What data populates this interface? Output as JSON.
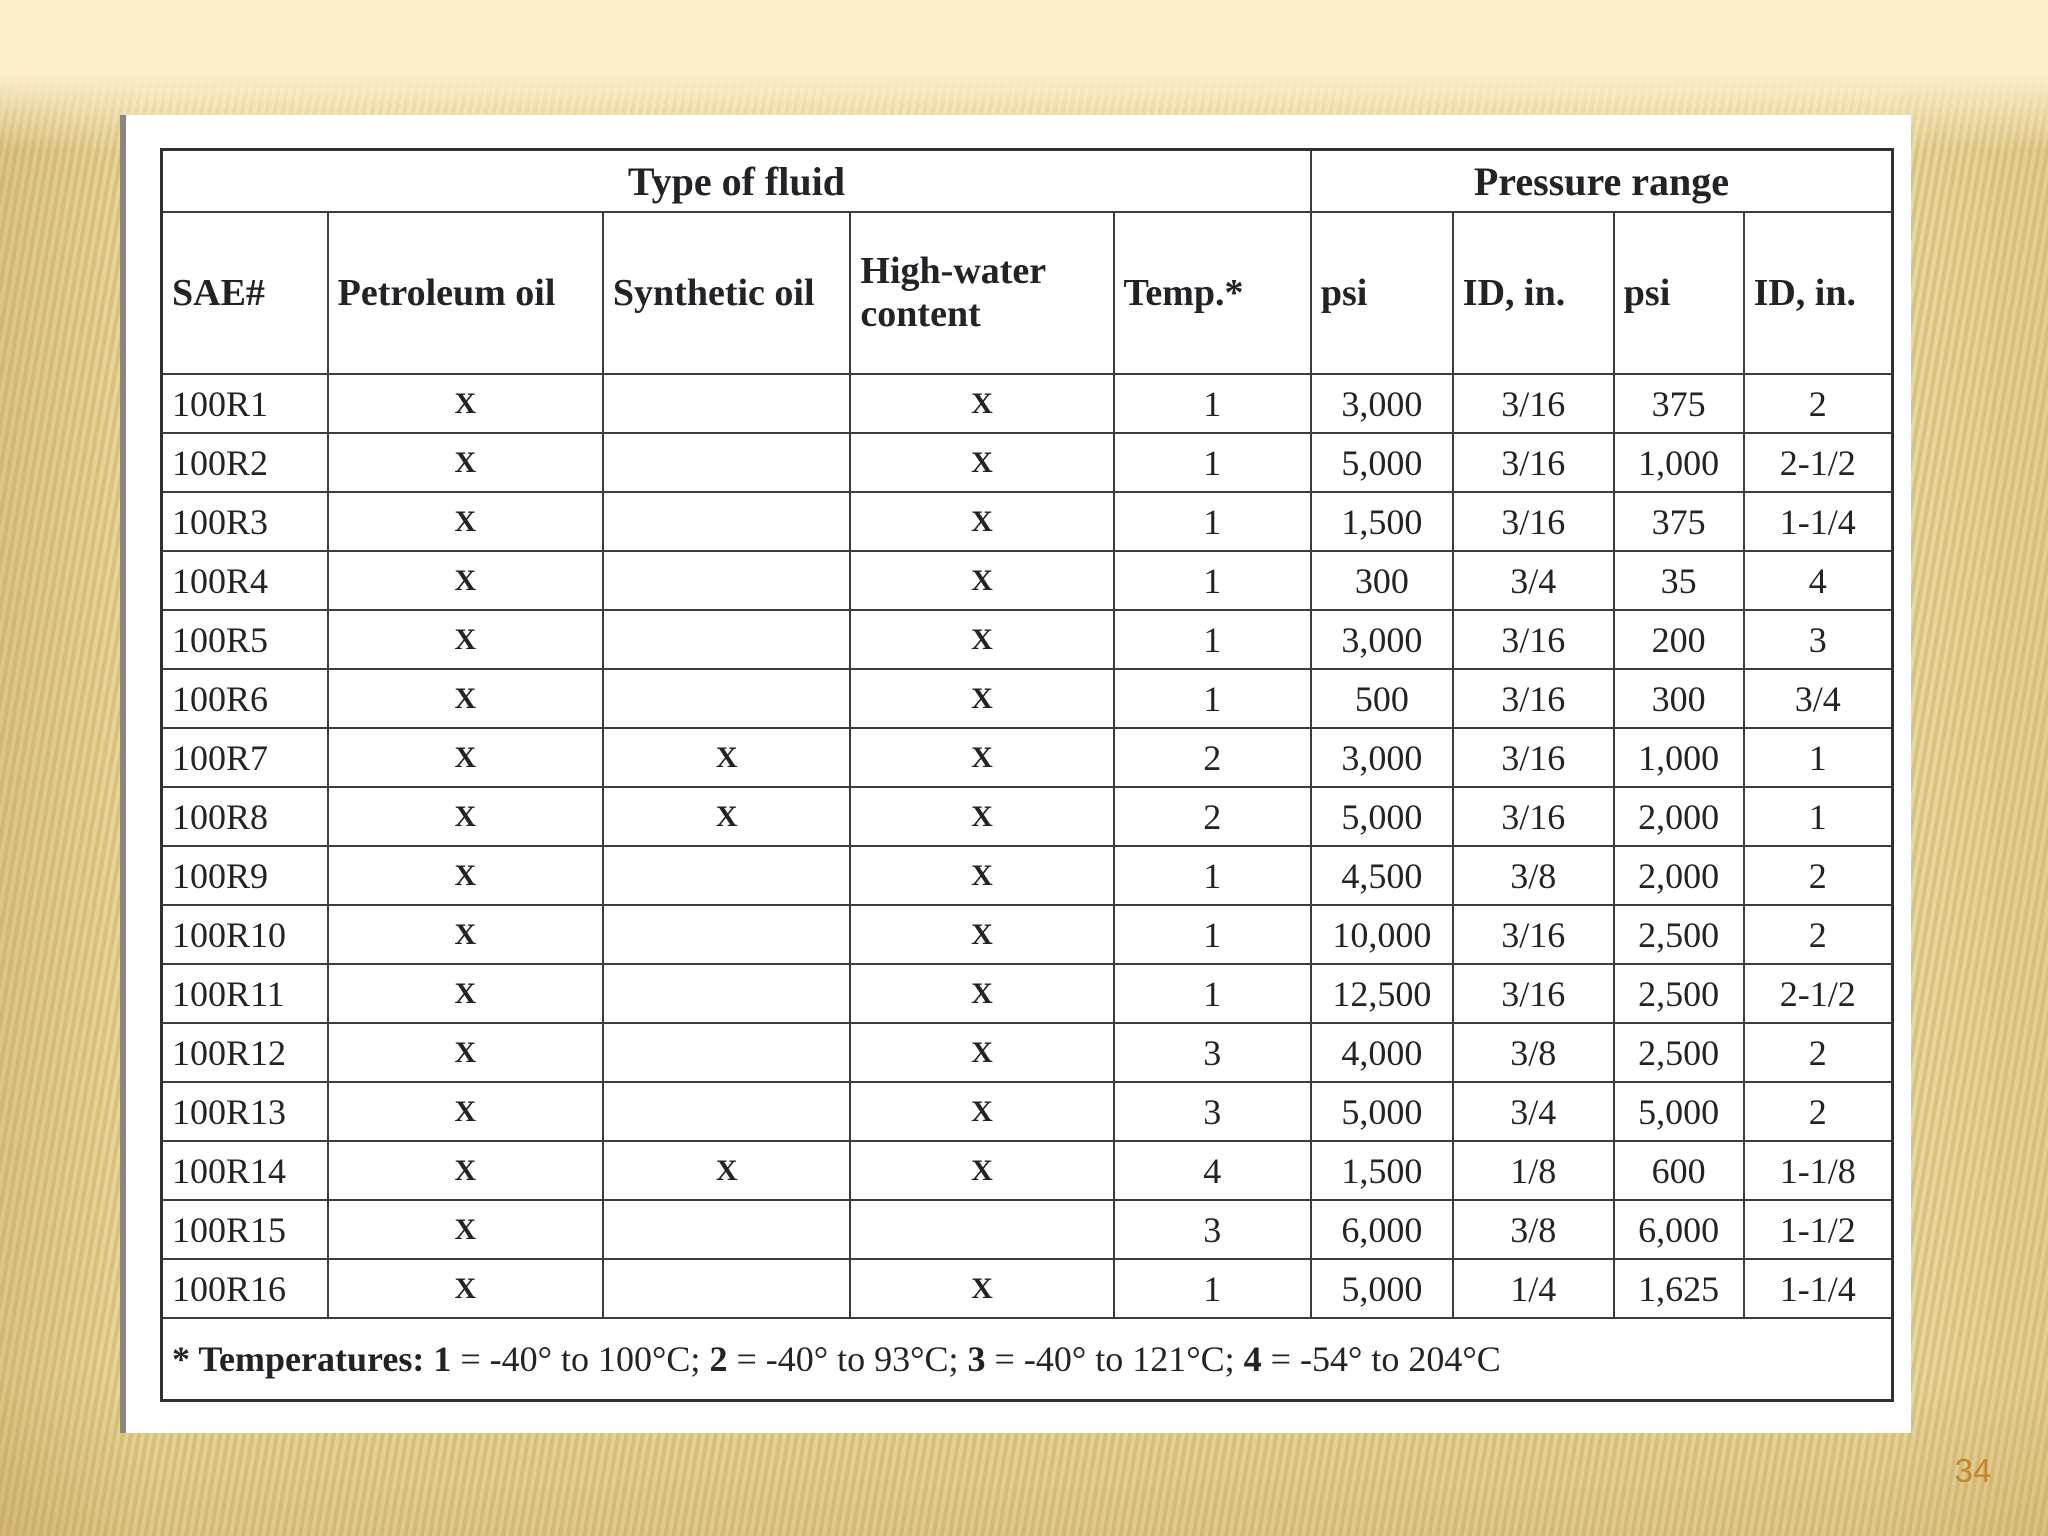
{
  "page": {
    "number": "34"
  },
  "table": {
    "group_headers": [
      {
        "label": "Type of fluid",
        "colspan": 5
      },
      {
        "label": "Pressure range",
        "colspan": 4
      }
    ],
    "column_headers": [
      "SAE#",
      "Petroleum oil",
      "Synthetic oil",
      "High-water content",
      "Temp.*",
      "psi",
      "ID, in.",
      "psi",
      "ID, in."
    ],
    "rows": [
      [
        "100R1",
        "X",
        "",
        "X",
        "1",
        "3,000",
        "3/16",
        "375",
        "2"
      ],
      [
        "100R2",
        "X",
        "",
        "X",
        "1",
        "5,000",
        "3/16",
        "1,000",
        "2-1/2"
      ],
      [
        "100R3",
        "X",
        "",
        "X",
        "1",
        "1,500",
        "3/16",
        "375",
        "1-1/4"
      ],
      [
        "100R4",
        "X",
        "",
        "X",
        "1",
        "300",
        "3/4",
        "35",
        "4"
      ],
      [
        "100R5",
        "X",
        "",
        "X",
        "1",
        "3,000",
        "3/16",
        "200",
        "3"
      ],
      [
        "100R6",
        "X",
        "",
        "X",
        "1",
        "500",
        "3/16",
        "300",
        "3/4"
      ],
      [
        "100R7",
        "X",
        "X",
        "X",
        "2",
        "3,000",
        "3/16",
        "1,000",
        "1"
      ],
      [
        "100R8",
        "X",
        "X",
        "X",
        "2",
        "5,000",
        "3/16",
        "2,000",
        "1"
      ],
      [
        "100R9",
        "X",
        "",
        "X",
        "1",
        "4,500",
        "3/8",
        "2,000",
        "2"
      ],
      [
        "100R10",
        "X",
        "",
        "X",
        "1",
        "10,000",
        "3/16",
        "2,500",
        "2"
      ],
      [
        "100R11",
        "X",
        "",
        "X",
        "1",
        "12,500",
        "3/16",
        "2,500",
        "2-1/2"
      ],
      [
        "100R12",
        "X",
        "",
        "X",
        "3",
        "4,000",
        "3/8",
        "2,500",
        "2"
      ],
      [
        "100R13",
        "X",
        "",
        "X",
        "3",
        "5,000",
        "3/4",
        "5,000",
        "2"
      ],
      [
        "100R14",
        "X",
        "X",
        "X",
        "4",
        "1,500",
        "1/8",
        "600",
        "1-1/8"
      ],
      [
        "100R15",
        "X",
        "",
        "",
        "3",
        "6,000",
        "3/8",
        "6,000",
        "1-1/2"
      ],
      [
        "100R16",
        "X",
        "",
        "X",
        "1",
        "5,000",
        "1/4",
        "1,625",
        "1-1/4"
      ]
    ],
    "footnote_segments": [
      {
        "text": "* Temperatures: ",
        "bold": true
      },
      {
        "text": "1",
        "bold": true
      },
      {
        "text": " = -40° to 100°C; ",
        "bold": false
      },
      {
        "text": "2",
        "bold": true
      },
      {
        "text": " = -40° to 93°C; ",
        "bold": false
      },
      {
        "text": "3",
        "bold": true
      },
      {
        "text": " = -40° to 121°C; ",
        "bold": false
      },
      {
        "text": "4",
        "bold": true
      },
      {
        "text": " = -54° to 204°C",
        "bold": false
      }
    ]
  }
}
